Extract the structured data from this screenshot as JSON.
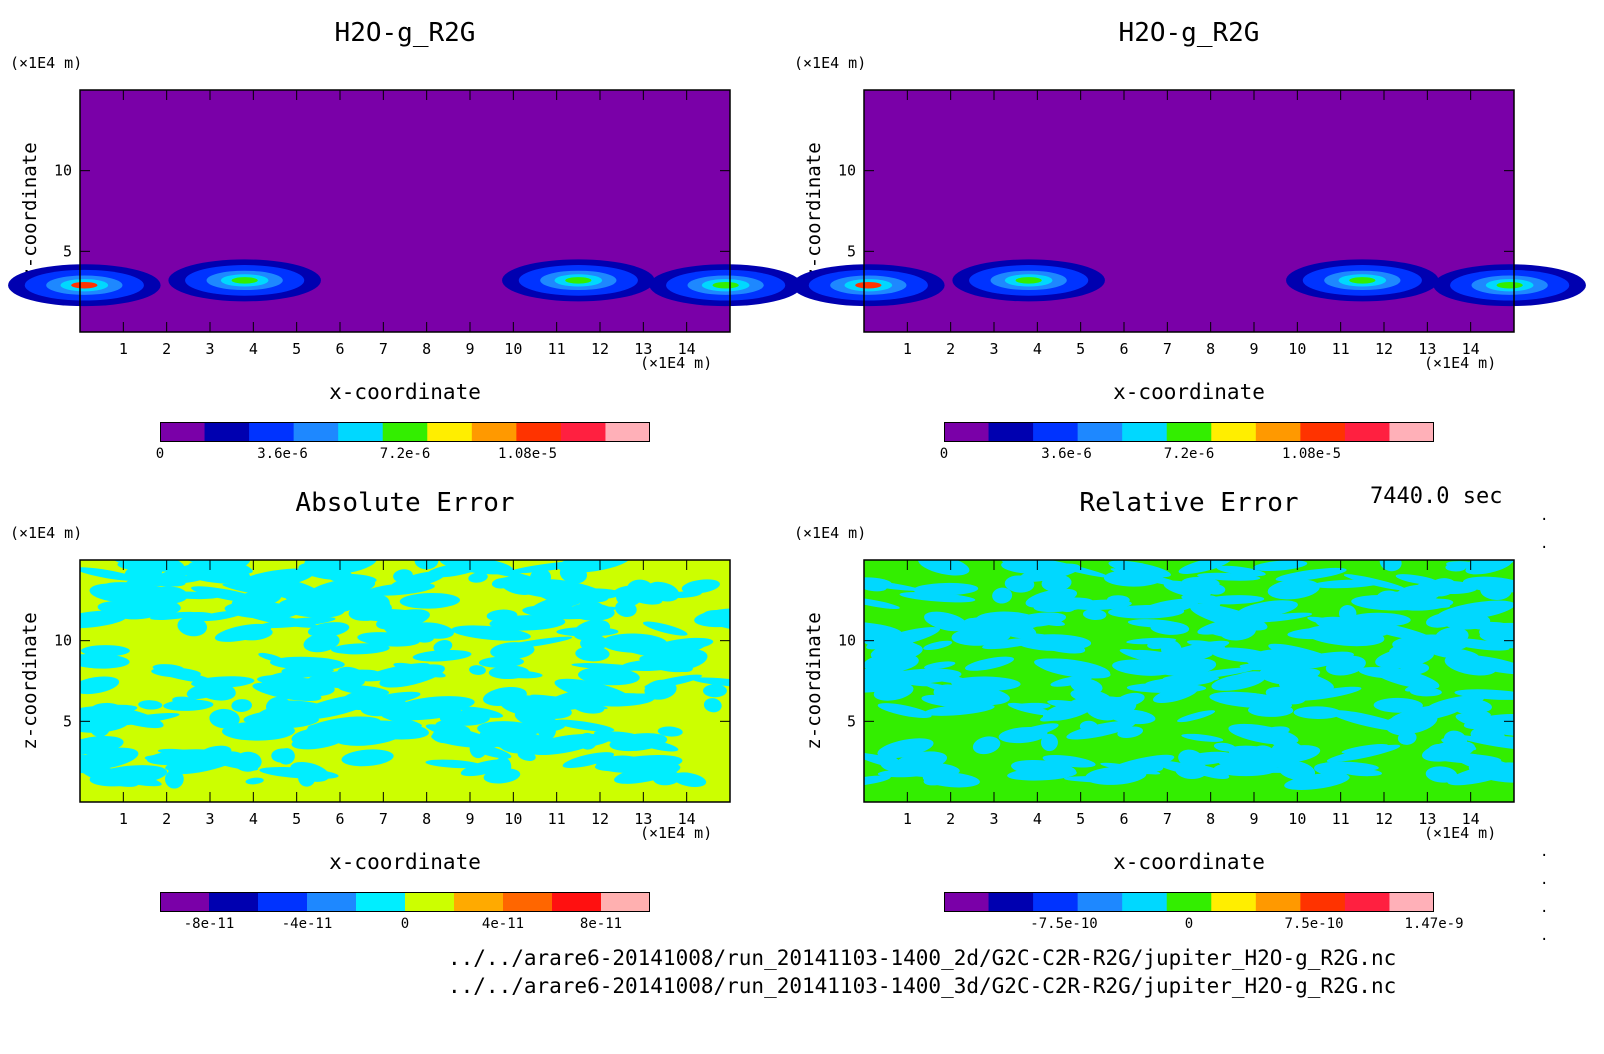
{
  "header": {
    "time": "7440.0 sec"
  },
  "files": [
    "../../arare6-20141008/run_20141103-1400_2d/G2C-C2R-R2G/jupiter_H2O-g_R2G.nc",
    "../../arare6-20141008/run_20141103-1400_3d/G2C-C2R-R2G/jupiter_H2O-g_R2G.nc"
  ],
  "chart_data": [
    {
      "type": "heatmap",
      "title": "H2O-g_R2G",
      "xlabel": "x-coordinate",
      "ylabel": "z-coordinate",
      "x_unit": "(×1E4 m)",
      "y_unit": "(×1E4 m)",
      "xlim": [
        0,
        15
      ],
      "ylim": [
        0,
        15
      ],
      "xticks": [
        "1",
        "2",
        "3",
        "4",
        "5",
        "6",
        "7",
        "8",
        "9",
        "10",
        "11",
        "12",
        "13",
        "14"
      ],
      "yticks": [
        "5",
        "10"
      ],
      "background_color": "#7a00a8",
      "colorbar": {
        "colors": [
          "#7a00a8",
          "#0000b0",
          "#0033ff",
          "#1e88ff",
          "#00d8ff",
          "#33ee00",
          "#ffee00",
          "#ff9900",
          "#ff3300",
          "#ff2040",
          "#ffb0b8"
        ],
        "tick_labels": [
          "0",
          "3.6e-6",
          "7.2e-6",
          "1.08e-5"
        ],
        "tick_values": [
          0,
          3.6e-06,
          7.2e-06,
          1.08e-05
        ],
        "range": [
          0,
          1.44e-05
        ]
      },
      "features": [
        {
          "x": 0.1,
          "z": 2.9,
          "level": 8
        },
        {
          "x": 3.8,
          "z": 3.2,
          "level": 5
        },
        {
          "x": 11.5,
          "z": 3.2,
          "level": 5
        },
        {
          "x": 14.9,
          "z": 2.9,
          "level": 5
        }
      ]
    },
    {
      "type": "heatmap",
      "title": "H2O-g_R2G",
      "xlabel": "x-coordinate",
      "ylabel": "z-coordinate",
      "x_unit": "(×1E4 m)",
      "y_unit": "(×1E4 m)",
      "xlim": [
        0,
        15
      ],
      "ylim": [
        0,
        15
      ],
      "xticks": [
        "1",
        "2",
        "3",
        "4",
        "5",
        "6",
        "7",
        "8",
        "9",
        "10",
        "11",
        "12",
        "13",
        "14"
      ],
      "yticks": [
        "5",
        "10"
      ],
      "background_color": "#7a00a8",
      "colorbar": {
        "colors": [
          "#7a00a8",
          "#0000b0",
          "#0033ff",
          "#1e88ff",
          "#00d8ff",
          "#33ee00",
          "#ffee00",
          "#ff9900",
          "#ff3300",
          "#ff2040",
          "#ffb0b8"
        ],
        "tick_labels": [
          "0",
          "3.6e-6",
          "7.2e-6",
          "1.08e-5"
        ],
        "tick_values": [
          0,
          3.6e-06,
          7.2e-06,
          1.08e-05
        ],
        "range": [
          0,
          1.44e-05
        ]
      },
      "features": [
        {
          "x": 0.1,
          "z": 2.9,
          "level": 8
        },
        {
          "x": 3.8,
          "z": 3.2,
          "level": 5
        },
        {
          "x": 11.5,
          "z": 3.2,
          "level": 5
        },
        {
          "x": 14.9,
          "z": 2.9,
          "level": 5
        }
      ]
    },
    {
      "type": "heatmap",
      "title": "Absolute Error",
      "xlabel": "x-coordinate",
      "ylabel": "z-coordinate",
      "x_unit": "(×1E4 m)",
      "y_unit": "(×1E4 m)",
      "xlim": [
        0,
        15
      ],
      "ylim": [
        0,
        15
      ],
      "xticks": [
        "1",
        "2",
        "3",
        "4",
        "5",
        "6",
        "7",
        "8",
        "9",
        "10",
        "11",
        "12",
        "13",
        "14"
      ],
      "yticks": [
        "5",
        "10"
      ],
      "background_color": "#ccff00",
      "pattern_color": "#00eeff",
      "colorbar": {
        "colors": [
          "#7a00a8",
          "#0000b0",
          "#0033ff",
          "#1e88ff",
          "#00eeff",
          "#ccff00",
          "#ffaa00",
          "#ff6600",
          "#ff1010",
          "#ffb0b0"
        ],
        "tick_labels": [
          "-8e-11",
          "-4e-11",
          "0",
          "4e-11",
          "8e-11"
        ],
        "tick_values": [
          -8e-11,
          -4e-11,
          0,
          4e-11,
          8e-11
        ],
        "range": [
          -1e-10,
          1e-10
        ]
      }
    },
    {
      "type": "heatmap",
      "title": "Relative Error",
      "xlabel": "x-coordinate",
      "ylabel": "z-coordinate",
      "x_unit": "(×1E4 m)",
      "y_unit": "(×1E4 m)",
      "xlim": [
        0,
        15
      ],
      "ylim": [
        0,
        15
      ],
      "xticks": [
        "1",
        "2",
        "3",
        "4",
        "5",
        "6",
        "7",
        "8",
        "9",
        "10",
        "11",
        "12",
        "13",
        "14"
      ],
      "yticks": [
        "5",
        "10"
      ],
      "background_color": "#33ee00",
      "pattern_color": "#00d8ff",
      "colorbar": {
        "colors": [
          "#7a00a8",
          "#0000b0",
          "#0033ff",
          "#1e88ff",
          "#00d8ff",
          "#33ee00",
          "#ffee00",
          "#ff9900",
          "#ff3300",
          "#ff2040",
          "#ffb0b8"
        ],
        "tick_labels": [
          "-7.5e-10",
          "0",
          "7.5e-10",
          "1.47e-9"
        ],
        "tick_values": [
          -7.5e-10,
          0,
          7.5e-10,
          1.47e-09
        ],
        "range": [
          -1.47e-09,
          1.47e-09
        ]
      }
    }
  ]
}
